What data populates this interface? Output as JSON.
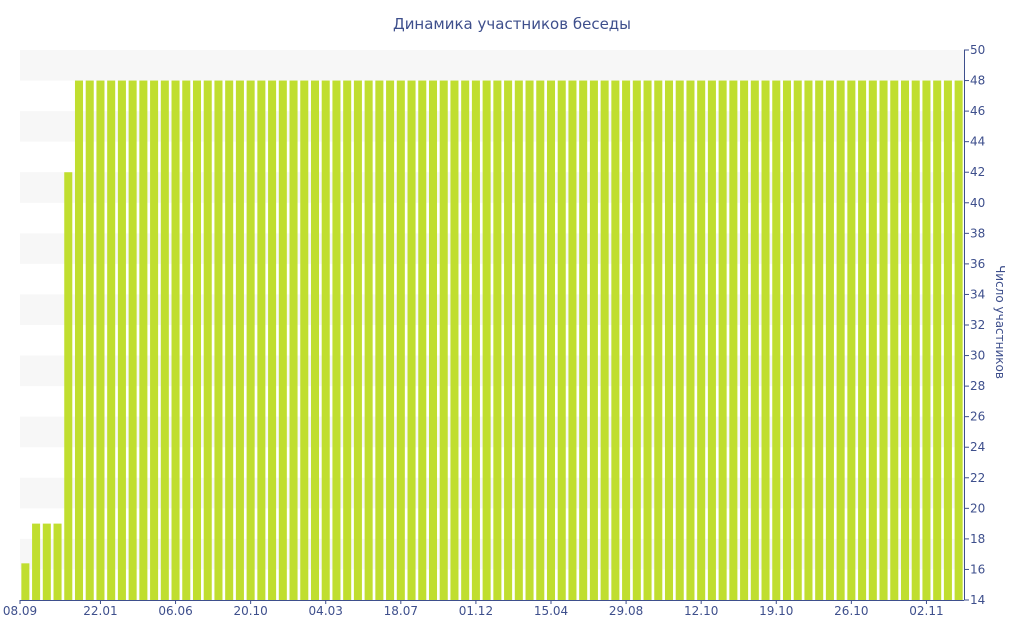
{
  "chart_data": {
    "type": "bar",
    "title": "Динамика участников беседы",
    "ylabel": "Число участников",
    "xlabel": "",
    "ylim": [
      14,
      50
    ],
    "yticks": [
      14,
      16,
      18,
      20,
      22,
      24,
      26,
      28,
      30,
      32,
      34,
      36,
      38,
      40,
      42,
      44,
      46,
      48,
      50
    ],
    "x_tick_labels": [
      "08.09",
      "22.01",
      "06.06",
      "20.10",
      "04.03",
      "18.07",
      "01.12",
      "15.04",
      "29.08",
      "12.10",
      "19.10",
      "26.10",
      "02.11"
    ],
    "x_tick_indices": [
      0,
      7,
      14,
      21,
      28,
      35,
      42,
      49,
      56,
      63,
      70,
      77,
      84
    ],
    "values": [
      16.4,
      19,
      19,
      19,
      42,
      48,
      48,
      48,
      48,
      48,
      48,
      48,
      48,
      48,
      48,
      48,
      48,
      48,
      48,
      48,
      48,
      48,
      48,
      48,
      48,
      48,
      48,
      48,
      48,
      48,
      48,
      48,
      48,
      48,
      48,
      48,
      48,
      48,
      48,
      48,
      48,
      48,
      48,
      48,
      48,
      48,
      48,
      48,
      48,
      48,
      48,
      48,
      48,
      48,
      48,
      48,
      48,
      48,
      48,
      48,
      48,
      48,
      48,
      48,
      48,
      48,
      48,
      48,
      48,
      48,
      48,
      48,
      48,
      48,
      48,
      48,
      48,
      48,
      48,
      48,
      48,
      48,
      48,
      48,
      48,
      48,
      48,
      48
    ],
    "grid": true,
    "bar_color": "#c0de2f",
    "axis_color": "#3e4f8c",
    "band_color": "#f7f7f7"
  }
}
